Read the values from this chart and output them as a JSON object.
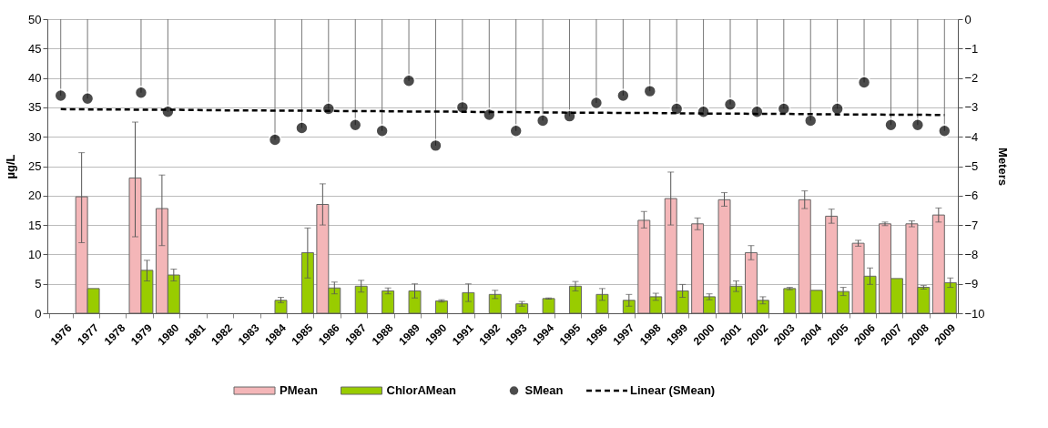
{
  "chart_data": {
    "type": "bar",
    "ylabel": "µg/L",
    "y2label": "Meters",
    "categories": [
      "1976",
      "1977",
      "1978",
      "1979",
      "1980",
      "1981",
      "1982",
      "1983",
      "1984",
      "1985",
      "1986",
      "1987",
      "1988",
      "1989",
      "1990",
      "1991",
      "1992",
      "1993",
      "1994",
      "1995",
      "1996",
      "1997",
      "1998",
      "1999",
      "2000",
      "2001",
      "2002",
      "2003",
      "2004",
      "2005",
      "2006",
      "2007",
      "2008",
      "2009"
    ],
    "series": [
      {
        "name": "PMean",
        "type": "bar",
        "color": "#f4b6b8",
        "values": [
          null,
          19.8,
          null,
          23,
          17.8,
          null,
          null,
          null,
          null,
          null,
          18.5,
          null,
          null,
          null,
          null,
          null,
          null,
          null,
          null,
          null,
          null,
          null,
          15.8,
          19.5,
          15.2,
          19.3,
          10.3,
          null,
          19.3,
          16.5,
          11.9,
          15.2,
          15.2,
          16.7
        ],
        "errors": [
          null,
          [
            12,
            27.3
          ],
          null,
          [
            13,
            32.5
          ],
          [
            11.5,
            23.5
          ],
          null,
          null,
          null,
          null,
          null,
          [
            15,
            22
          ],
          null,
          null,
          null,
          null,
          null,
          null,
          null,
          null,
          null,
          null,
          null,
          [
            14.5,
            17.3
          ],
          [
            15,
            24
          ],
          [
            14.2,
            16.2
          ],
          [
            18.2,
            20.5
          ],
          [
            9.1,
            11.5
          ],
          null,
          [
            17.8,
            20.8
          ],
          [
            15.3,
            17.7
          ],
          [
            11.4,
            12.4
          ],
          [
            14.9,
            15.5
          ],
          [
            14.7,
            15.7
          ],
          [
            15.5,
            17.9
          ]
        ]
      },
      {
        "name": "ChlorAMean",
        "type": "bar",
        "color": "#99cc00",
        "values": [
          null,
          4.2,
          null,
          7.3,
          6.5,
          null,
          null,
          null,
          2.2,
          10.3,
          4.3,
          4.6,
          3.8,
          3.8,
          2.1,
          3.5,
          3.2,
          1.6,
          2.5,
          4.6,
          3.2,
          2.2,
          2.8,
          3.8,
          2.8,
          4.6,
          2.2,
          4.2,
          3.9,
          3.7,
          6.3,
          5.9,
          4.4,
          5.2
        ],
        "errors": [
          null,
          null,
          null,
          [
            5.5,
            9
          ],
          [
            5.5,
            7.5
          ],
          null,
          null,
          null,
          [
            1.8,
            2.7
          ],
          [
            6,
            14.5
          ],
          [
            3.3,
            5.3
          ],
          [
            3.6,
            5.6
          ],
          [
            3.3,
            4.3
          ],
          [
            2.6,
            5
          ],
          [
            1.9,
            2.3
          ],
          [
            2,
            5
          ],
          [
            2.5,
            3.9
          ],
          [
            1.2,
            2
          ],
          [
            2.4,
            2.6
          ],
          [
            3.8,
            5.4
          ],
          [
            2.2,
            4.2
          ],
          [
            1.2,
            3.2
          ],
          [
            2.2,
            3.4
          ],
          [
            2.7,
            4.9
          ],
          [
            2.3,
            3.3
          ],
          [
            3.7,
            5.5
          ],
          [
            1.6,
            2.8
          ],
          [
            4,
            4.4
          ],
          null,
          [
            3,
            4.4
          ],
          [
            4.9,
            7.7
          ],
          null,
          [
            4.1,
            4.7
          ],
          [
            4.4,
            6
          ]
        ]
      },
      {
        "name": "SMean",
        "type": "scatter",
        "axis": "y2",
        "color": "#000000",
        "marker": "circle",
        "values": [
          -2.6,
          -2.7,
          null,
          -2.5,
          -3.15,
          null,
          null,
          null,
          -4.1,
          -3.7,
          -3.05,
          -3.6,
          -3.8,
          -2.1,
          -4.3,
          -3.0,
          -3.25,
          -3.8,
          -3.45,
          -3.3,
          -2.85,
          -2.6,
          -2.45,
          -3.05,
          -3.15,
          -2.9,
          -3.15,
          -3.05,
          -3.45,
          -3.05,
          -2.15,
          -3.6,
          -3.6,
          -3.8
        ],
        "errors": [
          [
            -2.6,
            0
          ],
          [
            -2.7,
            0
          ],
          null,
          [
            -2.5,
            0
          ],
          [
            -3.15,
            0
          ],
          null,
          null,
          null,
          [
            -4.1,
            0
          ],
          [
            -3.7,
            0
          ],
          [
            -3.05,
            0
          ],
          [
            -3.6,
            0
          ],
          [
            -3.8,
            0
          ],
          [
            -2.1,
            0
          ],
          [
            -4.3,
            0
          ],
          [
            -3.0,
            0
          ],
          [
            -3.25,
            0
          ],
          [
            -3.8,
            0
          ],
          [
            -3.45,
            0
          ],
          [
            -3.3,
            0
          ],
          [
            -2.85,
            0
          ],
          [
            -2.6,
            0
          ],
          [
            -2.45,
            0
          ],
          [
            -3.05,
            0
          ],
          [
            -3.15,
            0
          ],
          [
            -2.9,
            0
          ],
          [
            -3.15,
            0
          ],
          [
            -3.05,
            0
          ],
          [
            -3.45,
            0
          ],
          [
            -3.05,
            0
          ],
          [
            -2.15,
            0
          ],
          [
            -3.6,
            0
          ],
          [
            -3.6,
            0
          ],
          [
            -3.8,
            0
          ]
        ]
      },
      {
        "name": "Linear (SMean)",
        "type": "line",
        "axis": "y2",
        "color": "#000000",
        "line_style": "dashed",
        "values": [
          -3.06,
          -3.07,
          -3.07,
          -3.08,
          -3.08,
          -3.09,
          -3.1,
          -3.1,
          -3.11,
          -3.11,
          -3.12,
          -3.13,
          -3.13,
          -3.14,
          -3.14,
          -3.15,
          -3.16,
          -3.16,
          -3.17,
          -3.18,
          -3.18,
          -3.19,
          -3.19,
          -3.2,
          -3.21,
          -3.21,
          -3.22,
          -3.22,
          -3.23,
          -3.24,
          -3.24,
          -3.25,
          -3.25,
          -3.26
        ]
      }
    ],
    "ylim": [
      0,
      50
    ],
    "yticks": [
      0,
      5,
      10,
      15,
      20,
      25,
      30,
      35,
      40,
      45,
      50
    ],
    "y2lim": [
      -10,
      0
    ],
    "y2ticks": [
      -10,
      -9,
      -8,
      -7,
      -6,
      -5,
      -4,
      -3,
      -2,
      -1,
      0
    ],
    "grid": "y",
    "legend": "bottom"
  }
}
